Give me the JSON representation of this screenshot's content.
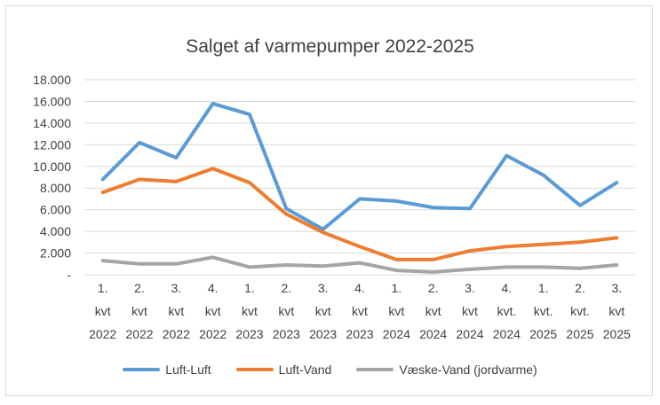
{
  "chart_data": {
    "type": "line",
    "title": "Salget af varmepumper 2022-2025",
    "xlabel": "",
    "ylabel": "",
    "categories": [
      [
        "1.",
        "kvt",
        "2022"
      ],
      [
        "2.",
        "kvt",
        "2022"
      ],
      [
        "3.",
        "kvt",
        "2022"
      ],
      [
        "4.",
        "kvt",
        "2022"
      ],
      [
        "1.",
        "kvt",
        "2023"
      ],
      [
        "2.",
        "kvt",
        "2023"
      ],
      [
        "3.",
        "kvt",
        "2023"
      ],
      [
        "4.",
        "kvt",
        "2023"
      ],
      [
        "1.",
        "kvt",
        "2024"
      ],
      [
        "2.",
        "kvt",
        "2024"
      ],
      [
        "3.",
        "kvt",
        "2024"
      ],
      [
        "4.",
        "kvt.",
        "2024"
      ],
      [
        "1.",
        "kvt.",
        "2025"
      ],
      [
        "2.",
        "kvt.",
        "2025"
      ],
      [
        "3.",
        "kvt",
        "2025"
      ]
    ],
    "ylim": [
      0,
      18000
    ],
    "yticks": [
      0,
      2000,
      4000,
      6000,
      8000,
      10000,
      12000,
      14000,
      16000,
      18000
    ],
    "ytick_labels": [
      "-",
      "2.000",
      "4.000",
      "6.000",
      "8.000",
      "10.000",
      "12.000",
      "14.000",
      "16.000",
      "18.000"
    ],
    "grid": true,
    "legend_position": "bottom",
    "series": [
      {
        "name": "Luft-Luft",
        "color": "#5b9bd5",
        "values": [
          8800,
          12200,
          10800,
          15800,
          14800,
          6100,
          4200,
          7000,
          6800,
          6200,
          6100,
          11000,
          9200,
          6400,
          8500
        ]
      },
      {
        "name": "Luft-Vand",
        "color": "#ed7d31",
        "values": [
          7600,
          8800,
          8600,
          9800,
          8500,
          5600,
          3900,
          2600,
          1400,
          1400,
          2200,
          2600,
          2800,
          3000,
          3400
        ]
      },
      {
        "name": "Væske-Vand (jordvarme)",
        "color": "#a5a5a5",
        "values": [
          1300,
          1000,
          1000,
          1600,
          700,
          900,
          800,
          1100,
          400,
          250,
          500,
          700,
          700,
          600,
          900
        ]
      }
    ]
  }
}
